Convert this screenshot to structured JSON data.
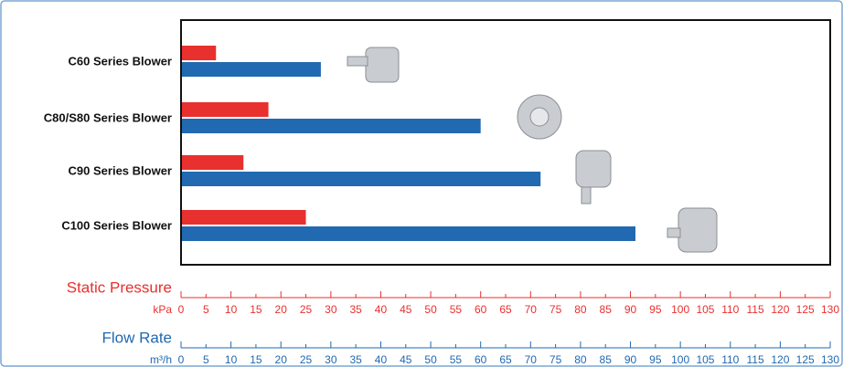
{
  "chart_data": {
    "type": "bar",
    "orientation": "horizontal",
    "categories": [
      "C60 Series Blower",
      "C80/S80 Series Blower",
      "C90 Series Blower",
      "C100 Series Blower"
    ],
    "series": [
      {
        "name": "Static Pressure",
        "unit": "kPa",
        "color": "#e8302f",
        "values": [
          7,
          17.5,
          12.5,
          25
        ]
      },
      {
        "name": "Flow Rate",
        "unit": "m³/h",
        "color": "#2169b0",
        "values": [
          28,
          60,
          72,
          91
        ],
        "axis": "x2"
      }
    ],
    "xlim": [
      0,
      130
    ],
    "xticks": [
      0,
      5,
      10,
      15,
      20,
      25,
      30,
      35,
      40,
      45,
      50,
      55,
      60,
      65,
      70,
      75,
      80,
      85,
      90,
      95,
      100,
      105,
      110,
      115,
      120,
      125,
      130
    ],
    "x2lim": [
      0,
      130
    ],
    "x2ticks": [
      0,
      5,
      10,
      15,
      20,
      25,
      30,
      35,
      40,
      45,
      50,
      55,
      60,
      65,
      70,
      75,
      80,
      85,
      90,
      95,
      100,
      105,
      110,
      115,
      120,
      125,
      130
    ]
  }
}
